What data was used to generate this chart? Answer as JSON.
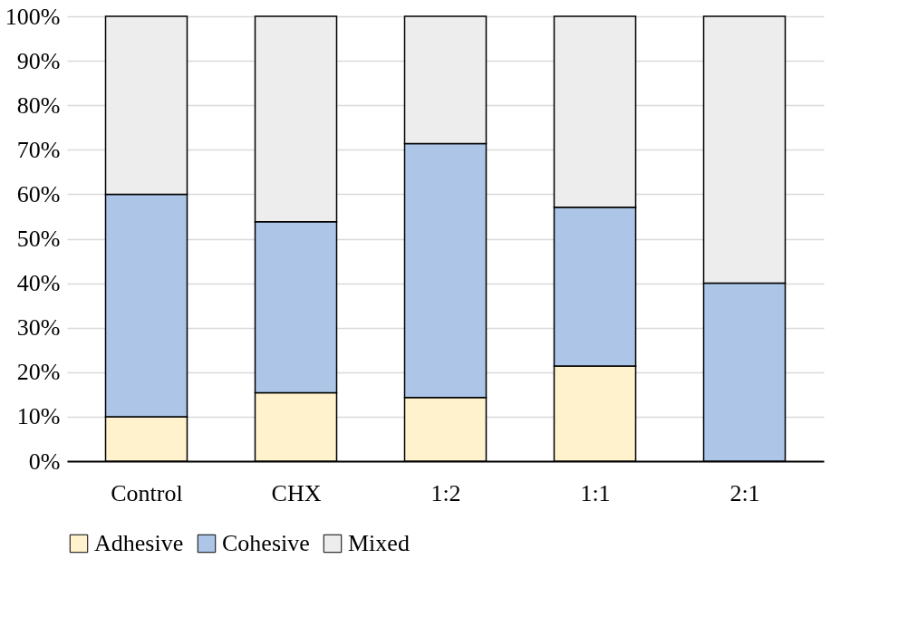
{
  "chart_data": {
    "type": "bar",
    "stacked": true,
    "categories": [
      "Control",
      "CHX",
      "1:2",
      "1:1",
      "2:1"
    ],
    "series": [
      {
        "name": "Adhesive",
        "color": "#fff2cc",
        "values": [
          10,
          15.4,
          14.3,
          21.4,
          0
        ]
      },
      {
        "name": "Cohesive",
        "color": "#adc6e8",
        "values": [
          50,
          38.4,
          57.1,
          35.7,
          40
        ]
      },
      {
        "name": "Mixed",
        "color": "#ededed",
        "values": [
          40,
          46.2,
          28.6,
          42.9,
          60
        ]
      }
    ],
    "ylim": [
      0,
      100
    ],
    "yticks": [
      {
        "value": 0,
        "label": "0%"
      },
      {
        "value": 10,
        "label": "10%"
      },
      {
        "value": 20,
        "label": "20%"
      },
      {
        "value": 30,
        "label": "30%"
      },
      {
        "value": 40,
        "label": "40%"
      },
      {
        "value": 50,
        "label": "50%"
      },
      {
        "value": 60,
        "label": "60%"
      },
      {
        "value": 70,
        "label": "70%"
      },
      {
        "value": 80,
        "label": "80%"
      },
      {
        "value": 90,
        "label": "90%"
      },
      {
        "value": 100,
        "label": "100%"
      }
    ],
    "grid": "y",
    "legend": "bottom"
  }
}
